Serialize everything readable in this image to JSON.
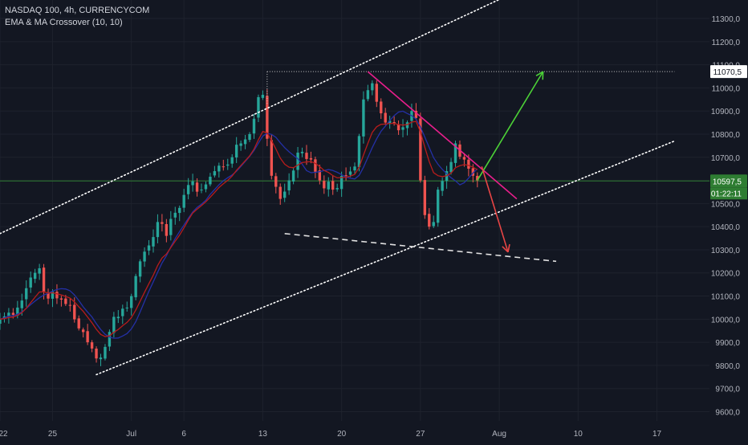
{
  "header": {
    "symbol_line": "NASDAQ 100, 4h, CURRENCYCOM",
    "indicator_line": "EMA & MA Crossover (10, 10)"
  },
  "colors": {
    "background": "#131722",
    "grid": "#1e222d",
    "up_candle": "#26a69a",
    "down_candle": "#ef5350",
    "ema_line": "#b71c1c",
    "ma_line": "#2430a6",
    "trend_channel": "#ffffff",
    "resistance_line": "#e91e8c",
    "bull_arrow": "#4cd137",
    "bear_arrow": "#e84545",
    "current_price_line": "#2e7d32",
    "axis_text": "#b2b5be"
  },
  "chart_data": {
    "type": "candlestick",
    "title": "NASDAQ 100, 4h, CURRENCYCOM",
    "indicator": "EMA & MA Crossover (10, 10)",
    "y_axis": {
      "ylim": [
        9560,
        11380
      ],
      "ticks": [
        9600,
        9700,
        9800,
        9900,
        10000,
        10100,
        10200,
        10300,
        10400,
        10500,
        10600,
        10700,
        10800,
        10900,
        11000,
        11100,
        11200,
        11300
      ],
      "tick_labels": [
        "9600,0",
        "9700,0",
        "9800,0",
        "9900,0",
        "10000,0",
        "10100,0",
        "10200,0",
        "10300,0",
        "10400,0",
        "10500,0",
        "10600,0",
        "10700,0",
        "10800,0",
        "10900,0",
        "11000,0",
        "11100,0",
        "11200,0",
        "11300,0"
      ]
    },
    "x_axis": {
      "xlim": [
        0,
        162
      ],
      "ticks": [
        0,
        12,
        30,
        42,
        60,
        78,
        96,
        114,
        132,
        150
      ],
      "tick_labels": [
        "22",
        "25",
        "Jul",
        "6",
        "13",
        "20",
        "27",
        "Aug",
        "10",
        "17"
      ]
    },
    "price_labels": [
      {
        "value": 11070.5,
        "text": "11070,5",
        "style": "white"
      },
      {
        "value": 10597.5,
        "text": "10597,5",
        "style": "green"
      }
    ],
    "countdown_text": "01:22:11",
    "anchor_closes": [
      [
        0,
        10000
      ],
      [
        4,
        10050
      ],
      [
        7,
        10180
      ],
      [
        9,
        10220
      ],
      [
        10,
        10120
      ],
      [
        13,
        10090
      ],
      [
        16,
        10060
      ],
      [
        18,
        9960
      ],
      [
        20,
        9900
      ],
      [
        22,
        9830
      ],
      [
        24,
        9880
      ],
      [
        26,
        10010
      ],
      [
        29,
        10050
      ],
      [
        32,
        10250
      ],
      [
        36,
        10420
      ],
      [
        38,
        10360
      ],
      [
        40,
        10460
      ],
      [
        43,
        10580
      ],
      [
        46,
        10560
      ],
      [
        49,
        10640
      ],
      [
        53,
        10700
      ],
      [
        55,
        10760
      ],
      [
        57,
        10800
      ],
      [
        59,
        10960
      ],
      [
        60,
        10970
      ],
      [
        61,
        10780
      ],
      [
        62,
        10620
      ],
      [
        64,
        10520
      ],
      [
        66,
        10600
      ],
      [
        68,
        10720
      ],
      [
        71,
        10690
      ],
      [
        73,
        10600
      ],
      [
        76,
        10560
      ],
      [
        79,
        10620
      ],
      [
        81,
        10660
      ],
      [
        83,
        10950
      ],
      [
        85,
        11020
      ],
      [
        86,
        10940
      ],
      [
        88,
        10850
      ],
      [
        92,
        10830
      ],
      [
        94,
        10900
      ],
      [
        95,
        10870
      ],
      [
        96,
        10600
      ],
      [
        97,
        10450
      ],
      [
        98,
        10400
      ],
      [
        99,
        10420
      ],
      [
        100,
        10560
      ],
      [
        102,
        10640
      ],
      [
        104,
        10760
      ],
      [
        106,
        10690
      ],
      [
        108,
        10620
      ],
      [
        109,
        10600
      ]
    ],
    "drawings": {
      "upper_channel_line": [
        [
          0,
          10370
        ],
        [
          116,
          11400
        ]
      ],
      "lower_channel_line": [
        [
          22,
          9760
        ],
        [
          154,
          10770
        ]
      ],
      "flat_resistance": [
        [
          61,
          11070.5
        ],
        [
          154,
          11070.5
        ]
      ],
      "falling_resistance": [
        [
          84,
          11070
        ],
        [
          118,
          10520
        ]
      ],
      "dashed_support": [
        [
          65,
          10370
        ],
        [
          127,
          10250
        ]
      ],
      "bull_projection": [
        [
          109,
          10600
        ],
        [
          124,
          11070
        ]
      ],
      "bear_projection": [
        [
          110,
          10660
        ],
        [
          116,
          10290
        ]
      ]
    }
  }
}
